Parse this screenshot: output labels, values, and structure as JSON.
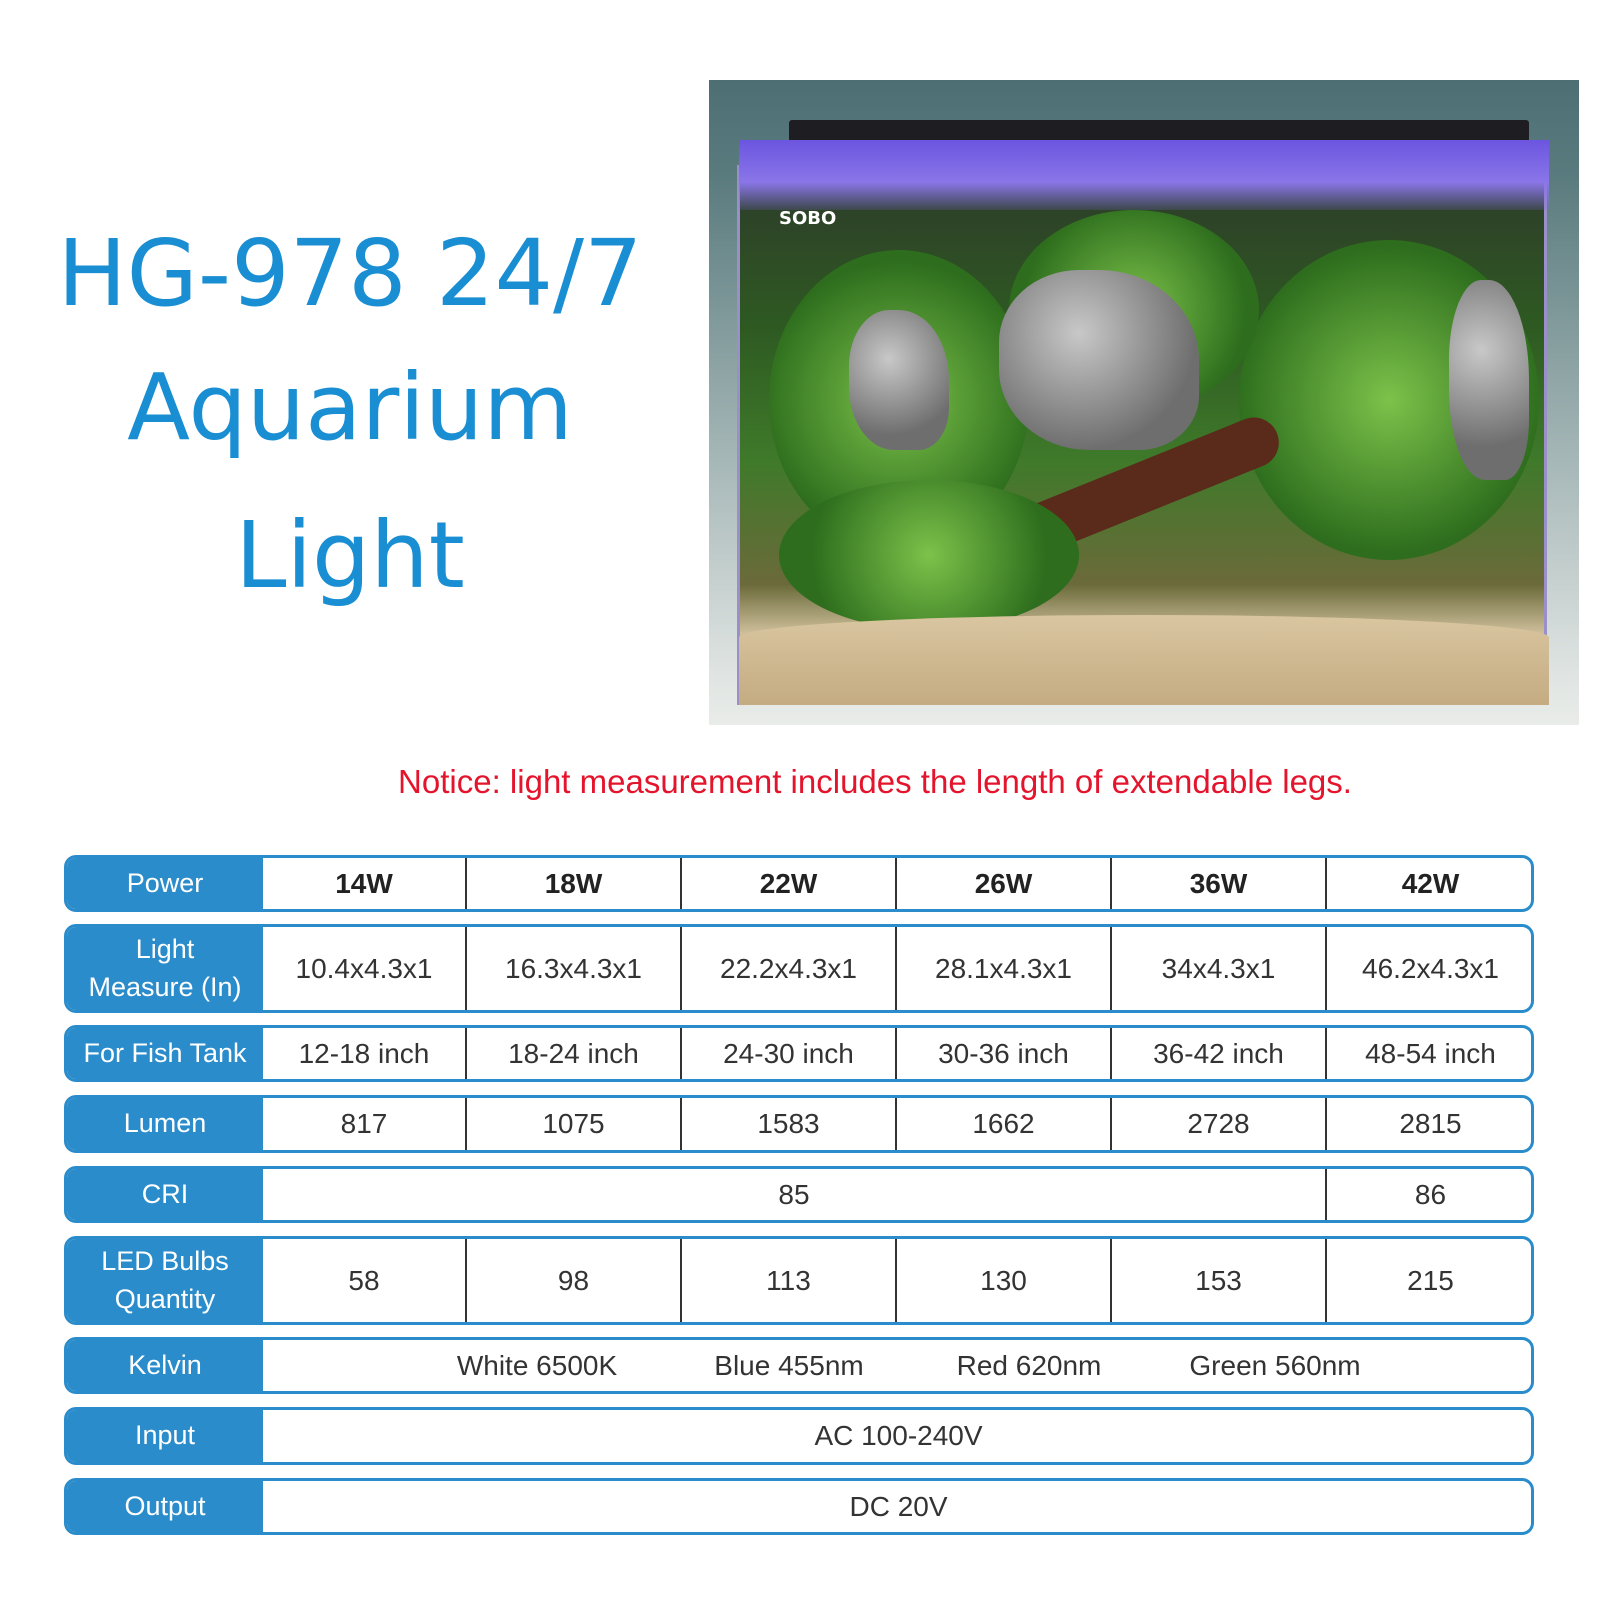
{
  "title": {
    "line1": "HG-978 24/7",
    "line2": "Aquarium",
    "line3": "Light"
  },
  "photo": {
    "logo": "SOBO"
  },
  "notice": "Notice: light measurement includes the length of extendable legs.",
  "table": {
    "power": {
      "label": "Power",
      "values": [
        "14W",
        "18W",
        "22W",
        "26W",
        "36W",
        "42W"
      ]
    },
    "measure": {
      "label_line1": "Light",
      "label_line2": "Measure (In)",
      "values": [
        "10.4x4.3x1",
        "16.3x4.3x1",
        "22.2x4.3x1",
        "28.1x4.3x1",
        "34x4.3x1",
        "46.2x4.3x1"
      ]
    },
    "tank": {
      "label": "For Fish Tank",
      "values": [
        "12-18 inch",
        "18-24 inch",
        "24-30 inch",
        "30-36 inch",
        "36-42 inch",
        "48-54 inch"
      ]
    },
    "lumen": {
      "label": "Lumen",
      "values": [
        "817",
        "1075",
        "1583",
        "1662",
        "2728",
        "2815"
      ]
    },
    "cri": {
      "label": "CRI",
      "value_a": "85",
      "value_b": "86"
    },
    "led": {
      "label_line1": "LED Bulbs",
      "label_line2": "Quantity",
      "values": [
        "58",
        "98",
        "113",
        "130",
        "153",
        "215"
      ]
    },
    "kelvin": {
      "label": "Kelvin",
      "values": [
        "White 6500K",
        "Blue 455nm",
        "Red 620nm",
        "Green 560nm"
      ]
    },
    "input": {
      "label": "Input",
      "value": "AC 100-240V"
    },
    "output": {
      "label": "Output",
      "value": "DC 20V"
    }
  },
  "colors": {
    "accent": "#2a8ccb",
    "title": "#1a8ed3",
    "notice": "#e4142c"
  }
}
